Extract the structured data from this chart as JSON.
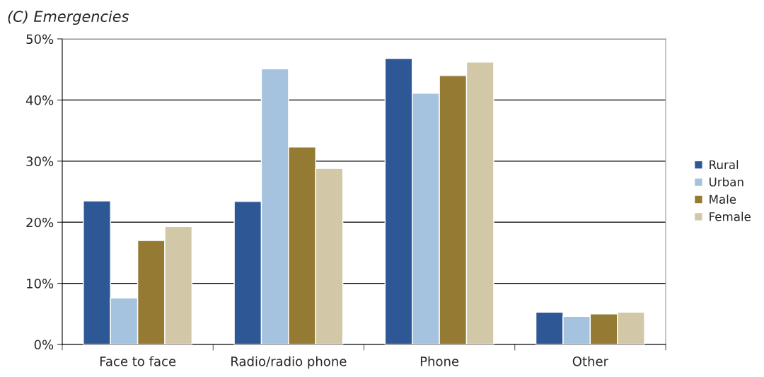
{
  "chart_data": {
    "type": "bar",
    "title": "(C) Emergencies",
    "categories": [
      "Face to face",
      "Radio/radio phone",
      "Phone",
      "Other"
    ],
    "series": [
      {
        "name": "Rural",
        "color": "#2e5795",
        "values": [
          23.5,
          23.4,
          46.8,
          5.3
        ]
      },
      {
        "name": "Urban",
        "color": "#a5c2de",
        "values": [
          7.6,
          45.1,
          41.1,
          4.6
        ]
      },
      {
        "name": "Male",
        "color": "#947a32",
        "values": [
          17.0,
          32.3,
          44.0,
          5.0
        ]
      },
      {
        "name": "Female",
        "color": "#d2c8a7",
        "values": [
          19.3,
          28.8,
          46.2,
          5.3
        ]
      }
    ],
    "ylim": [
      0,
      50
    ],
    "yticks": [
      {
        "value": 0,
        "label": "0%"
      },
      {
        "value": 10,
        "label": "10%"
      },
      {
        "value": 20,
        "label": "20%"
      },
      {
        "value": 30,
        "label": "30%"
      },
      {
        "value": 40,
        "label": "40%"
      },
      {
        "value": 50,
        "label": "50%"
      }
    ],
    "grid": "y",
    "legend": "right"
  }
}
